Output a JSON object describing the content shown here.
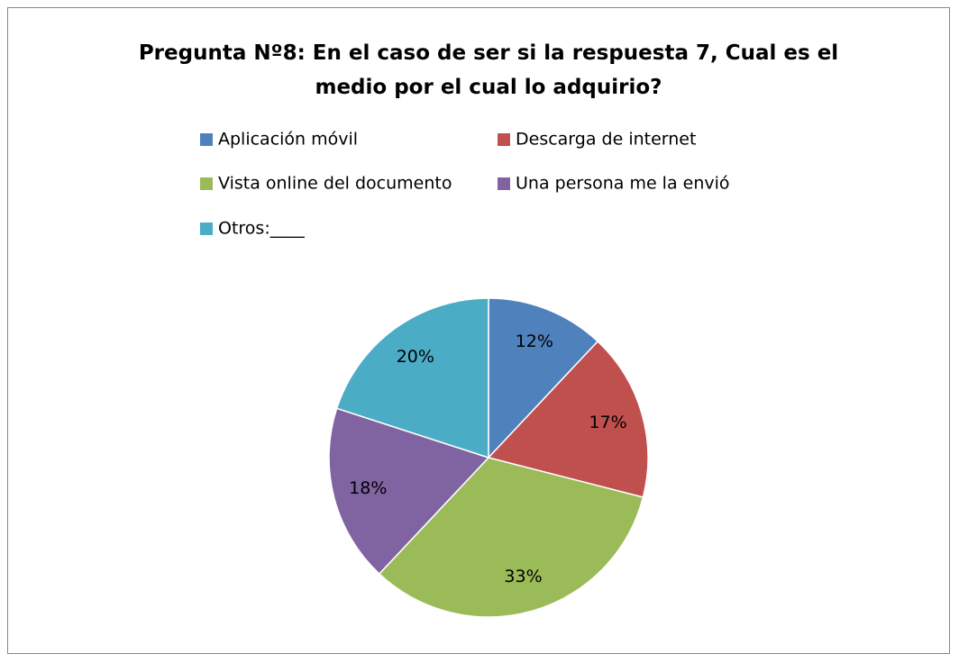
{
  "chart_data": {
    "type": "pie",
    "title": "Pregunta Nº8: En el caso de ser si la respuesta 7, Cual es el medio por el cual lo adquirio?",
    "categories": [
      "Aplicación móvil",
      "Descarga de internet",
      "Vista online del documento",
      "Una persona me la envió",
      "Otros:____"
    ],
    "values": [
      12,
      17,
      33,
      18,
      20
    ],
    "value_labels": [
      "12%",
      "17%",
      "33%",
      "18%",
      "20%"
    ],
    "colors": [
      "#4F81BD",
      "#C0504D",
      "#9BBB59",
      "#8064A2",
      "#4BACC6"
    ],
    "legend": "top"
  }
}
